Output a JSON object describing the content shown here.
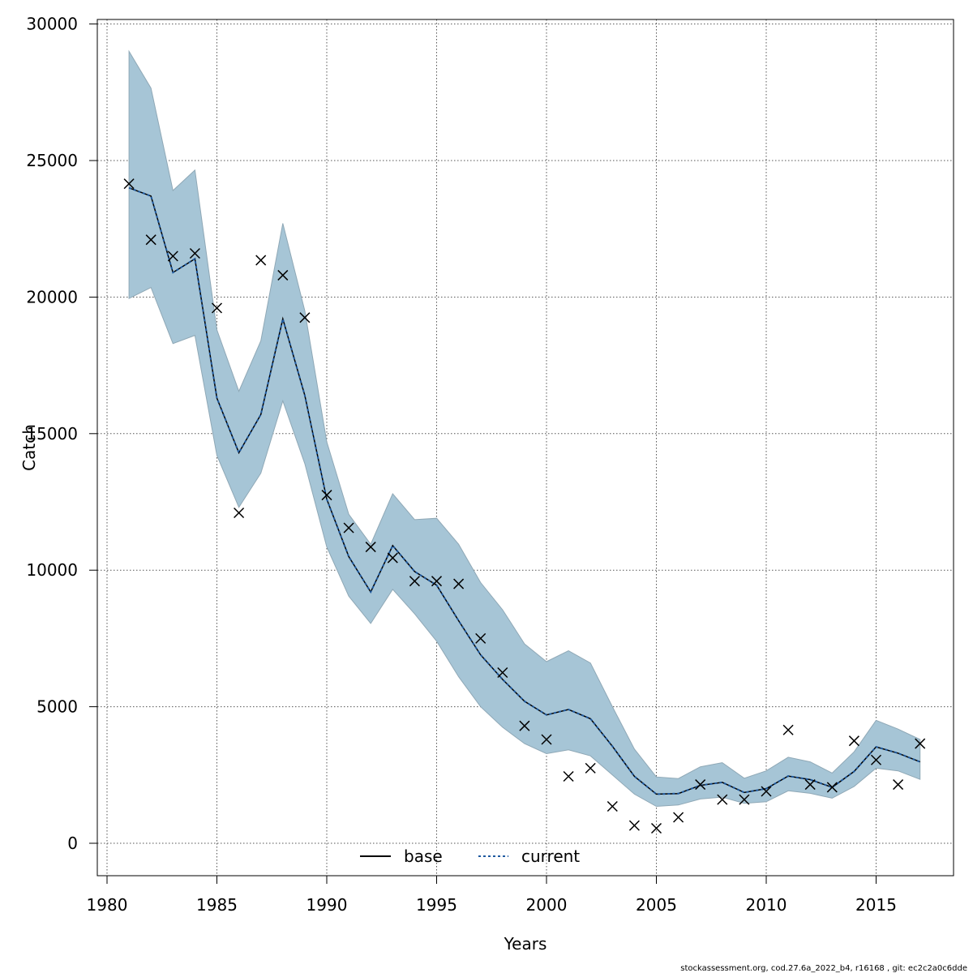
{
  "chart_data": {
    "type": "line",
    "xlabel": "Years",
    "ylabel": "Catch",
    "xlim": [
      1980,
      2018
    ],
    "ylim": [
      -1200,
      30300
    ],
    "xticks": [
      1980,
      1985,
      1990,
      1995,
      2000,
      2005,
      2010,
      2015
    ],
    "yticks": [
      0,
      5000,
      10000,
      15000,
      20000,
      25000,
      30000
    ],
    "grid": true,
    "legend_position": "bottom-center",
    "colors": {
      "band": "#a6c5d6",
      "band_edge": "#8fa8b6",
      "current_line": "#1f5aa0",
      "base_line": "#000000",
      "points": "#000000"
    },
    "x": [
      1981,
      1982,
      1983,
      1984,
      1985,
      1986,
      1987,
      1988,
      1989,
      1990,
      1991,
      1992,
      1993,
      1994,
      1995,
      1996,
      1997,
      1998,
      1999,
      2000,
      2001,
      2002,
      2003,
      2004,
      2005,
      2006,
      2007,
      2008,
      2009,
      2010,
      2011,
      2012,
      2013,
      2014,
      2015,
      2016,
      2017
    ],
    "series": [
      {
        "name": "base",
        "values": [
          24000,
          23700,
          20900,
          21400,
          16300,
          14300,
          15700,
          19200,
          16400,
          12600,
          10500,
          9200,
          10900,
          9950,
          9450,
          8150,
          6900,
          6000,
          5200,
          4700,
          4900,
          4560,
          3550,
          2450,
          1800,
          1820,
          2120,
          2230,
          1860,
          2000,
          2460,
          2330,
          2050,
          2630,
          3530,
          3300,
          2980
        ]
      },
      {
        "name": "current",
        "values": [
          24000,
          23700,
          20900,
          21400,
          16300,
          14300,
          15700,
          19200,
          16400,
          12600,
          10500,
          9200,
          10900,
          9950,
          9450,
          8150,
          6900,
          6000,
          5200,
          4700,
          4900,
          4560,
          3550,
          2450,
          1800,
          1820,
          2120,
          2230,
          1860,
          2000,
          2460,
          2330,
          2050,
          2630,
          3530,
          3300,
          2980
        ]
      }
    ],
    "ci_upper": [
      29000,
      27650,
      23900,
      24650,
      18800,
      16550,
      18400,
      22700,
      19500,
      14700,
      12050,
      10950,
      12800,
      11850,
      11900,
      10950,
      9550,
      8550,
      7300,
      6650,
      7050,
      6600,
      5000,
      3450,
      2430,
      2370,
      2800,
      2950,
      2380,
      2650,
      3150,
      2980,
      2570,
      3350,
      4500,
      4180,
      3800
    ],
    "ci_lower": [
      19950,
      20350,
      18300,
      18600,
      14200,
      12300,
      13550,
      16200,
      13900,
      10850,
      9050,
      8050,
      9300,
      8400,
      7400,
      6100,
      5000,
      4250,
      3650,
      3280,
      3420,
      3200,
      2500,
      1800,
      1350,
      1400,
      1620,
      1690,
      1460,
      1520,
      1920,
      1830,
      1650,
      2080,
      2750,
      2650,
      2340
    ],
    "observed": {
      "x": [
        1981,
        1982,
        1983,
        1984,
        1985,
        1986,
        1987,
        1988,
        1989,
        1990,
        1991,
        1992,
        1993,
        1994,
        1995,
        1996,
        1997,
        1998,
        1999,
        2000,
        2001,
        2002,
        2003,
        2004,
        2005,
        2006,
        2007,
        2008,
        2009,
        2010,
        2011,
        2012,
        2013,
        2014,
        2015,
        2016,
        2017
      ],
      "y": [
        24150,
        22100,
        21500,
        21600,
        19600,
        12100,
        21350,
        20800,
        19250,
        12750,
        11550,
        10850,
        10450,
        9600,
        9600,
        9500,
        7500,
        6250,
        4300,
        3800,
        2450,
        2750,
        1350,
        650,
        550,
        950,
        2150,
        1600,
        1600,
        1900,
        4150,
        2150,
        2050,
        3750,
        3050,
        2150,
        3650
      ]
    }
  },
  "footer": "stockassessment.org, cod.27.6a_2022_b4, r16168 , git: ec2c2a0c6dde"
}
